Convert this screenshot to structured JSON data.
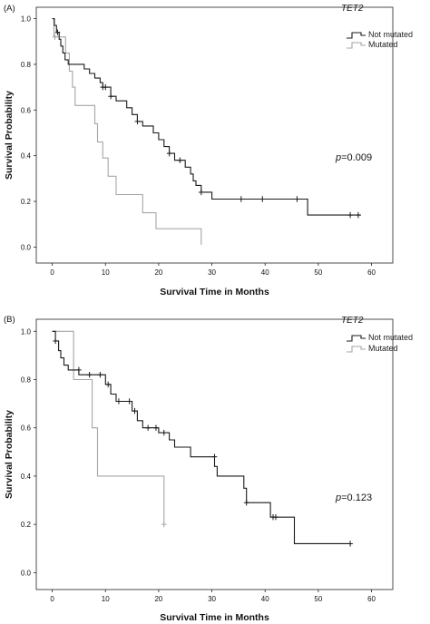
{
  "chart_data": [
    {
      "type": "line",
      "panel_label": "(A)",
      "xlabel": "Survival Time in Months",
      "ylabel": "Survival Probability",
      "xlim": [
        -3,
        64
      ],
      "ylim": [
        -0.07,
        1.05
      ],
      "xticks": [
        "0",
        "10",
        "20",
        "30",
        "40",
        "50",
        "60"
      ],
      "yticks": [
        "0.0",
        "0.2",
        "0.4",
        "0.6",
        "0.8",
        "1.0"
      ],
      "legend_title": "TET2",
      "legend_position": "top-right",
      "p_value": "=0.009",
      "series": [
        {
          "name": "Not mutated",
          "color": "#1a1a1a",
          "points": [
            [
              0,
              1.0
            ],
            [
              0.4,
              1.0
            ],
            [
              0.4,
              0.97
            ],
            [
              0.8,
              0.97
            ],
            [
              0.8,
              0.94
            ],
            [
              1.3,
              0.94
            ],
            [
              1.3,
              0.91
            ],
            [
              1.6,
              0.91
            ],
            [
              1.6,
              0.88
            ],
            [
              2,
              0.88
            ],
            [
              2,
              0.85
            ],
            [
              2.4,
              0.85
            ],
            [
              2.4,
              0.82
            ],
            [
              3,
              0.82
            ],
            [
              3,
              0.8
            ],
            [
              6,
              0.8
            ],
            [
              6,
              0.78
            ],
            [
              7,
              0.78
            ],
            [
              7,
              0.76
            ],
            [
              8,
              0.76
            ],
            [
              8,
              0.74
            ],
            [
              9,
              0.74
            ],
            [
              9,
              0.72
            ],
            [
              9.5,
              0.72
            ],
            [
              9.5,
              0.7
            ],
            [
              11,
              0.7
            ],
            [
              11,
              0.66
            ],
            [
              12,
              0.66
            ],
            [
              12,
              0.64
            ],
            [
              14,
              0.64
            ],
            [
              14,
              0.61
            ],
            [
              15,
              0.61
            ],
            [
              15,
              0.58
            ],
            [
              16,
              0.58
            ],
            [
              16,
              0.55
            ],
            [
              17,
              0.55
            ],
            [
              17,
              0.53
            ],
            [
              19,
              0.53
            ],
            [
              19,
              0.5
            ],
            [
              20,
              0.5
            ],
            [
              20,
              0.47
            ],
            [
              21,
              0.47
            ],
            [
              21,
              0.44
            ],
            [
              22,
              0.44
            ],
            [
              22,
              0.41
            ],
            [
              23,
              0.41
            ],
            [
              23,
              0.38
            ],
            [
              25,
              0.38
            ],
            [
              25,
              0.35
            ],
            [
              26,
              0.35
            ],
            [
              26,
              0.32
            ],
            [
              26.5,
              0.32
            ],
            [
              26.5,
              0.29
            ],
            [
              27,
              0.29
            ],
            [
              27,
              0.27
            ],
            [
              28,
              0.27
            ],
            [
              28,
              0.24
            ],
            [
              30,
              0.24
            ],
            [
              30,
              0.21
            ],
            [
              48,
              0.21
            ],
            [
              48,
              0.14
            ],
            [
              58,
              0.14
            ]
          ],
          "censored": [
            [
              1,
              0.94
            ],
            [
              9.5,
              0.7
            ],
            [
              10,
              0.7
            ],
            [
              11,
              0.66
            ],
            [
              16,
              0.55
            ],
            [
              22,
              0.41
            ],
            [
              24,
              0.38
            ],
            [
              28,
              0.24
            ],
            [
              35.5,
              0.21
            ],
            [
              39.5,
              0.21
            ],
            [
              46,
              0.21
            ],
            [
              56,
              0.14
            ],
            [
              57.5,
              0.14
            ]
          ]
        },
        {
          "name": "Mutated",
          "color": "#a6a6a6",
          "points": [
            [
              0,
              1.0
            ],
            [
              0.3,
              1.0
            ],
            [
              0.3,
              0.92
            ],
            [
              2.5,
              0.92
            ],
            [
              2.5,
              0.85
            ],
            [
              3.2,
              0.85
            ],
            [
              3.2,
              0.77
            ],
            [
              3.8,
              0.77
            ],
            [
              3.8,
              0.7
            ],
            [
              4.3,
              0.7
            ],
            [
              4.3,
              0.62
            ],
            [
              8,
              0.62
            ],
            [
              8,
              0.54
            ],
            [
              8.5,
              0.54
            ],
            [
              8.5,
              0.46
            ],
            [
              9.5,
              0.46
            ],
            [
              9.5,
              0.39
            ],
            [
              10.5,
              0.39
            ],
            [
              10.5,
              0.31
            ],
            [
              12,
              0.31
            ],
            [
              12,
              0.23
            ],
            [
              17,
              0.23
            ],
            [
              17,
              0.15
            ],
            [
              19.5,
              0.15
            ],
            [
              19.5,
              0.08
            ],
            [
              28,
              0.08
            ],
            [
              28,
              0.01
            ]
          ],
          "censored": [
            [
              0.5,
              0.92
            ]
          ]
        }
      ]
    },
    {
      "type": "line",
      "panel_label": "(B)",
      "xlabel": "Survival Time in Months",
      "ylabel": "Survival Probability",
      "xlim": [
        -3,
        64
      ],
      "ylim": [
        -0.07,
        1.05
      ],
      "xticks": [
        "0",
        "10",
        "20",
        "30",
        "40",
        "50",
        "60"
      ],
      "yticks": [
        "0.0",
        "0.2",
        "0.4",
        "0.6",
        "0.8",
        "1.0"
      ],
      "legend_title": "TET2",
      "legend_position": "top-right",
      "p_value": "=0.123",
      "series": [
        {
          "name": "Not mutated",
          "color": "#1a1a1a",
          "points": [
            [
              0,
              1.0
            ],
            [
              0.6,
              1.0
            ],
            [
              0.6,
              0.96
            ],
            [
              1.2,
              0.96
            ],
            [
              1.2,
              0.92
            ],
            [
              1.6,
              0.92
            ],
            [
              1.6,
              0.89
            ],
            [
              2.2,
              0.89
            ],
            [
              2.2,
              0.86
            ],
            [
              3,
              0.86
            ],
            [
              3,
              0.84
            ],
            [
              5,
              0.84
            ],
            [
              5,
              0.82
            ],
            [
              10,
              0.82
            ],
            [
              10,
              0.78
            ],
            [
              11,
              0.78
            ],
            [
              11,
              0.74
            ],
            [
              12,
              0.74
            ],
            [
              12,
              0.71
            ],
            [
              15,
              0.71
            ],
            [
              15,
              0.67
            ],
            [
              16,
              0.67
            ],
            [
              16,
              0.63
            ],
            [
              17,
              0.63
            ],
            [
              17,
              0.6
            ],
            [
              20,
              0.6
            ],
            [
              20,
              0.58
            ],
            [
              22,
              0.58
            ],
            [
              22,
              0.55
            ],
            [
              23,
              0.55
            ],
            [
              23,
              0.52
            ],
            [
              26,
              0.52
            ],
            [
              26,
              0.48
            ],
            [
              30.5,
              0.48
            ],
            [
              30.5,
              0.44
            ],
            [
              31,
              0.44
            ],
            [
              31,
              0.4
            ],
            [
              36,
              0.4
            ],
            [
              36,
              0.35
            ],
            [
              36.5,
              0.35
            ],
            [
              36.5,
              0.29
            ],
            [
              41,
              0.29
            ],
            [
              41,
              0.23
            ],
            [
              45.5,
              0.23
            ],
            [
              45.5,
              0.12
            ],
            [
              56,
              0.12
            ]
          ],
          "censored": [
            [
              0.6,
              0.96
            ],
            [
              5,
              0.84
            ],
            [
              7,
              0.82
            ],
            [
              9,
              0.82
            ],
            [
              10.5,
              0.78
            ],
            [
              12.5,
              0.71
            ],
            [
              14.5,
              0.71
            ],
            [
              15.5,
              0.67
            ],
            [
              18,
              0.6
            ],
            [
              19.5,
              0.6
            ],
            [
              21,
              0.58
            ],
            [
              30.5,
              0.48
            ],
            [
              36.5,
              0.29
            ],
            [
              41.5,
              0.23
            ],
            [
              42,
              0.23
            ],
            [
              56,
              0.12
            ]
          ]
        },
        {
          "name": "Mutated",
          "color": "#a6a6a6",
          "points": [
            [
              0,
              1.0
            ],
            [
              4,
              1.0
            ],
            [
              4,
              0.8
            ],
            [
              7.5,
              0.8
            ],
            [
              7.5,
              0.6
            ],
            [
              8.5,
              0.6
            ],
            [
              8.5,
              0.4
            ],
            [
              21,
              0.4
            ],
            [
              21,
              0.2
            ]
          ],
          "censored": [
            [
              21,
              0.2
            ]
          ]
        }
      ]
    }
  ]
}
